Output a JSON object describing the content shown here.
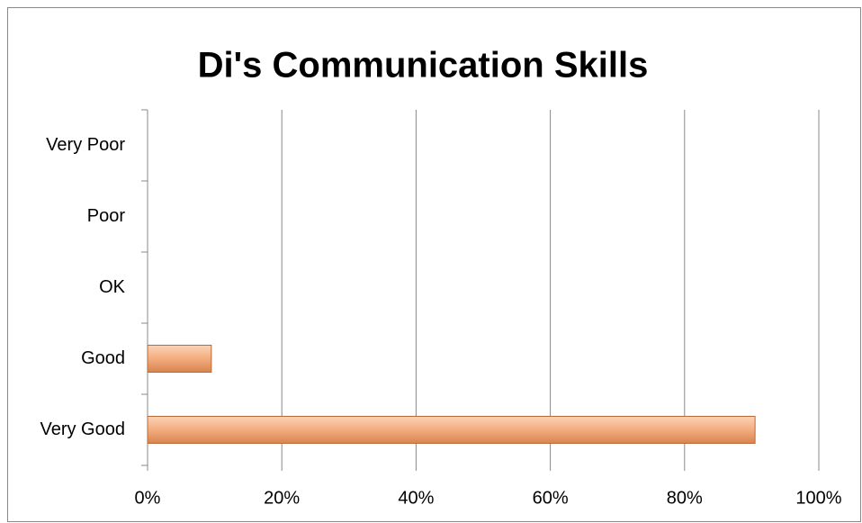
{
  "chart_data": {
    "type": "hbar",
    "title": "Di's Communication Skills",
    "categories": [
      "Very Poor",
      "Poor",
      "OK",
      "Good",
      "Very Good"
    ],
    "values": [
      0,
      0,
      0,
      9.5,
      90.5
    ],
    "color": "#f0a473",
    "xlim": [
      0,
      100
    ],
    "xticks": [
      {
        "value": 0,
        "label": "0%"
      },
      {
        "value": 20,
        "label": "20%"
      },
      {
        "value": 40,
        "label": "40%"
      },
      {
        "value": 60,
        "label": "60%"
      },
      {
        "value": 80,
        "label": "80%"
      },
      {
        "value": 100,
        "label": "100%"
      }
    ],
    "grid": true
  }
}
